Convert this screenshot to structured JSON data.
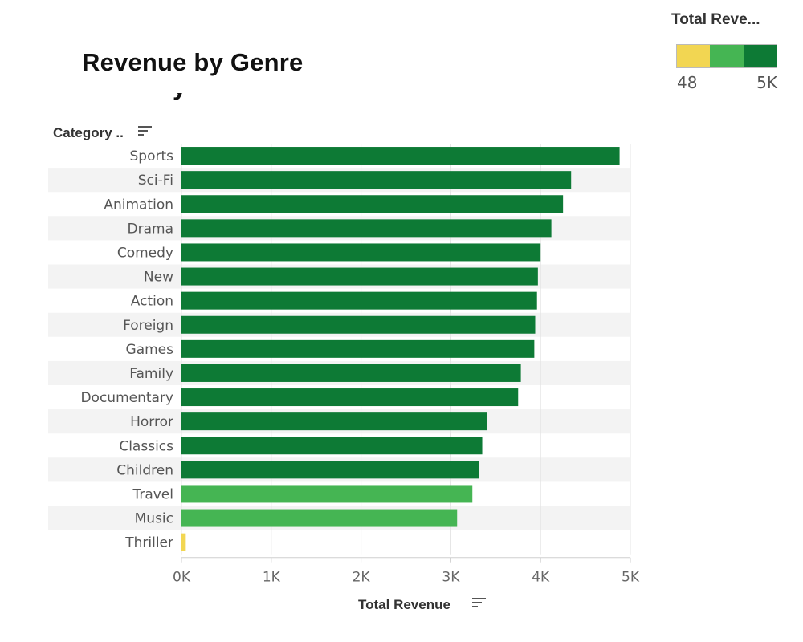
{
  "title": "Revenue by Genre",
  "title_fragment": "y",
  "legend": {
    "title": "Total Reve...",
    "min_label": "48",
    "max_label": "5K",
    "colors": [
      "#f2d652",
      "#45b553",
      "#0d7a35"
    ]
  },
  "row_header": "Category ..",
  "chart_data": {
    "type": "bar",
    "orientation": "horizontal",
    "title": "Revenue by Genre",
    "ylabel": "Category ..",
    "xlabel": "Total Revenue",
    "categories": [
      "Sports",
      "Sci-Fi",
      "Animation",
      "Drama",
      "Comedy",
      "New",
      "Action",
      "Foreign",
      "Games",
      "Family",
      "Documentary",
      "Horror",
      "Classics",
      "Children",
      "Travel",
      "Music",
      "Thriller"
    ],
    "values": [
      4880,
      4340,
      4250,
      4120,
      4000,
      3970,
      3960,
      3940,
      3930,
      3780,
      3750,
      3400,
      3350,
      3310,
      3240,
      3070,
      48
    ],
    "colors": [
      "#0d7a35",
      "#0d7a35",
      "#0d7a35",
      "#0d7a35",
      "#0d7a35",
      "#0d7a35",
      "#0d7a35",
      "#0d7a35",
      "#0d7a35",
      "#0d7a35",
      "#0d7a35",
      "#0d7a35",
      "#0d7a35",
      "#0d7a35",
      "#45b553",
      "#45b553",
      "#f2d652"
    ],
    "xlim": [
      0,
      5000
    ],
    "xticks": [
      0,
      1000,
      2000,
      3000,
      4000,
      5000
    ],
    "xtick_labels": [
      "0K",
      "1K",
      "2K",
      "3K",
      "4K",
      "5K"
    ],
    "grid": true,
    "legend_position": "top-right"
  }
}
